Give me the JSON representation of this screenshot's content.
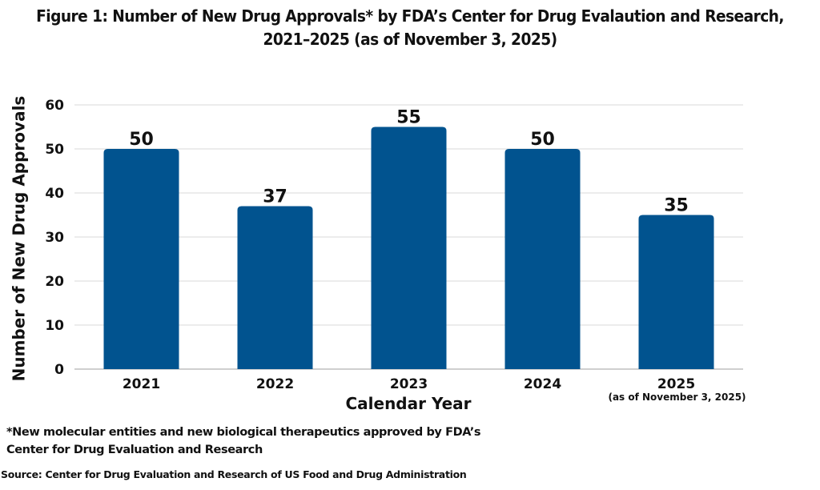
{
  "chart_data": {
    "type": "bar",
    "title": "Figure 1: Number of New Drug Approvals* by FDA’s Center for Drug Evalaution and Research, 2021–2025 (as of November 3, 2025)",
    "title_lines": [
      "Figure 1: Number of New Drug Approvals* by FDA’s Center for Drug Evalaution and Research,",
      "2021–2025 (as of November 3, 2025)"
    ],
    "categories": [
      "2021",
      "2022",
      "2023",
      "2024",
      "2025"
    ],
    "category_sublabels": [
      "",
      "",
      "",
      "",
      "(as of November 3, 2025)"
    ],
    "values": [
      50,
      37,
      55,
      50,
      35
    ],
    "data_labels": [
      "50",
      "37",
      "55",
      "50",
      "35"
    ],
    "xlabel": "Calendar Year",
    "ylabel": "Number of New Drug Approvals",
    "ylim": [
      0,
      60
    ],
    "yticks": [
      0,
      10,
      20,
      30,
      40,
      50,
      60
    ],
    "grid": true,
    "legend": "none",
    "bar_color": "#01538F"
  },
  "footnote": {
    "lines": [
      "*New molecular entities and new biological therapeutics approved by FDA’s",
      "Center for Drug Evaluation and Research"
    ]
  },
  "source": "Source: Center for Drug Evaluation and Research of US Food and Drug Administration"
}
